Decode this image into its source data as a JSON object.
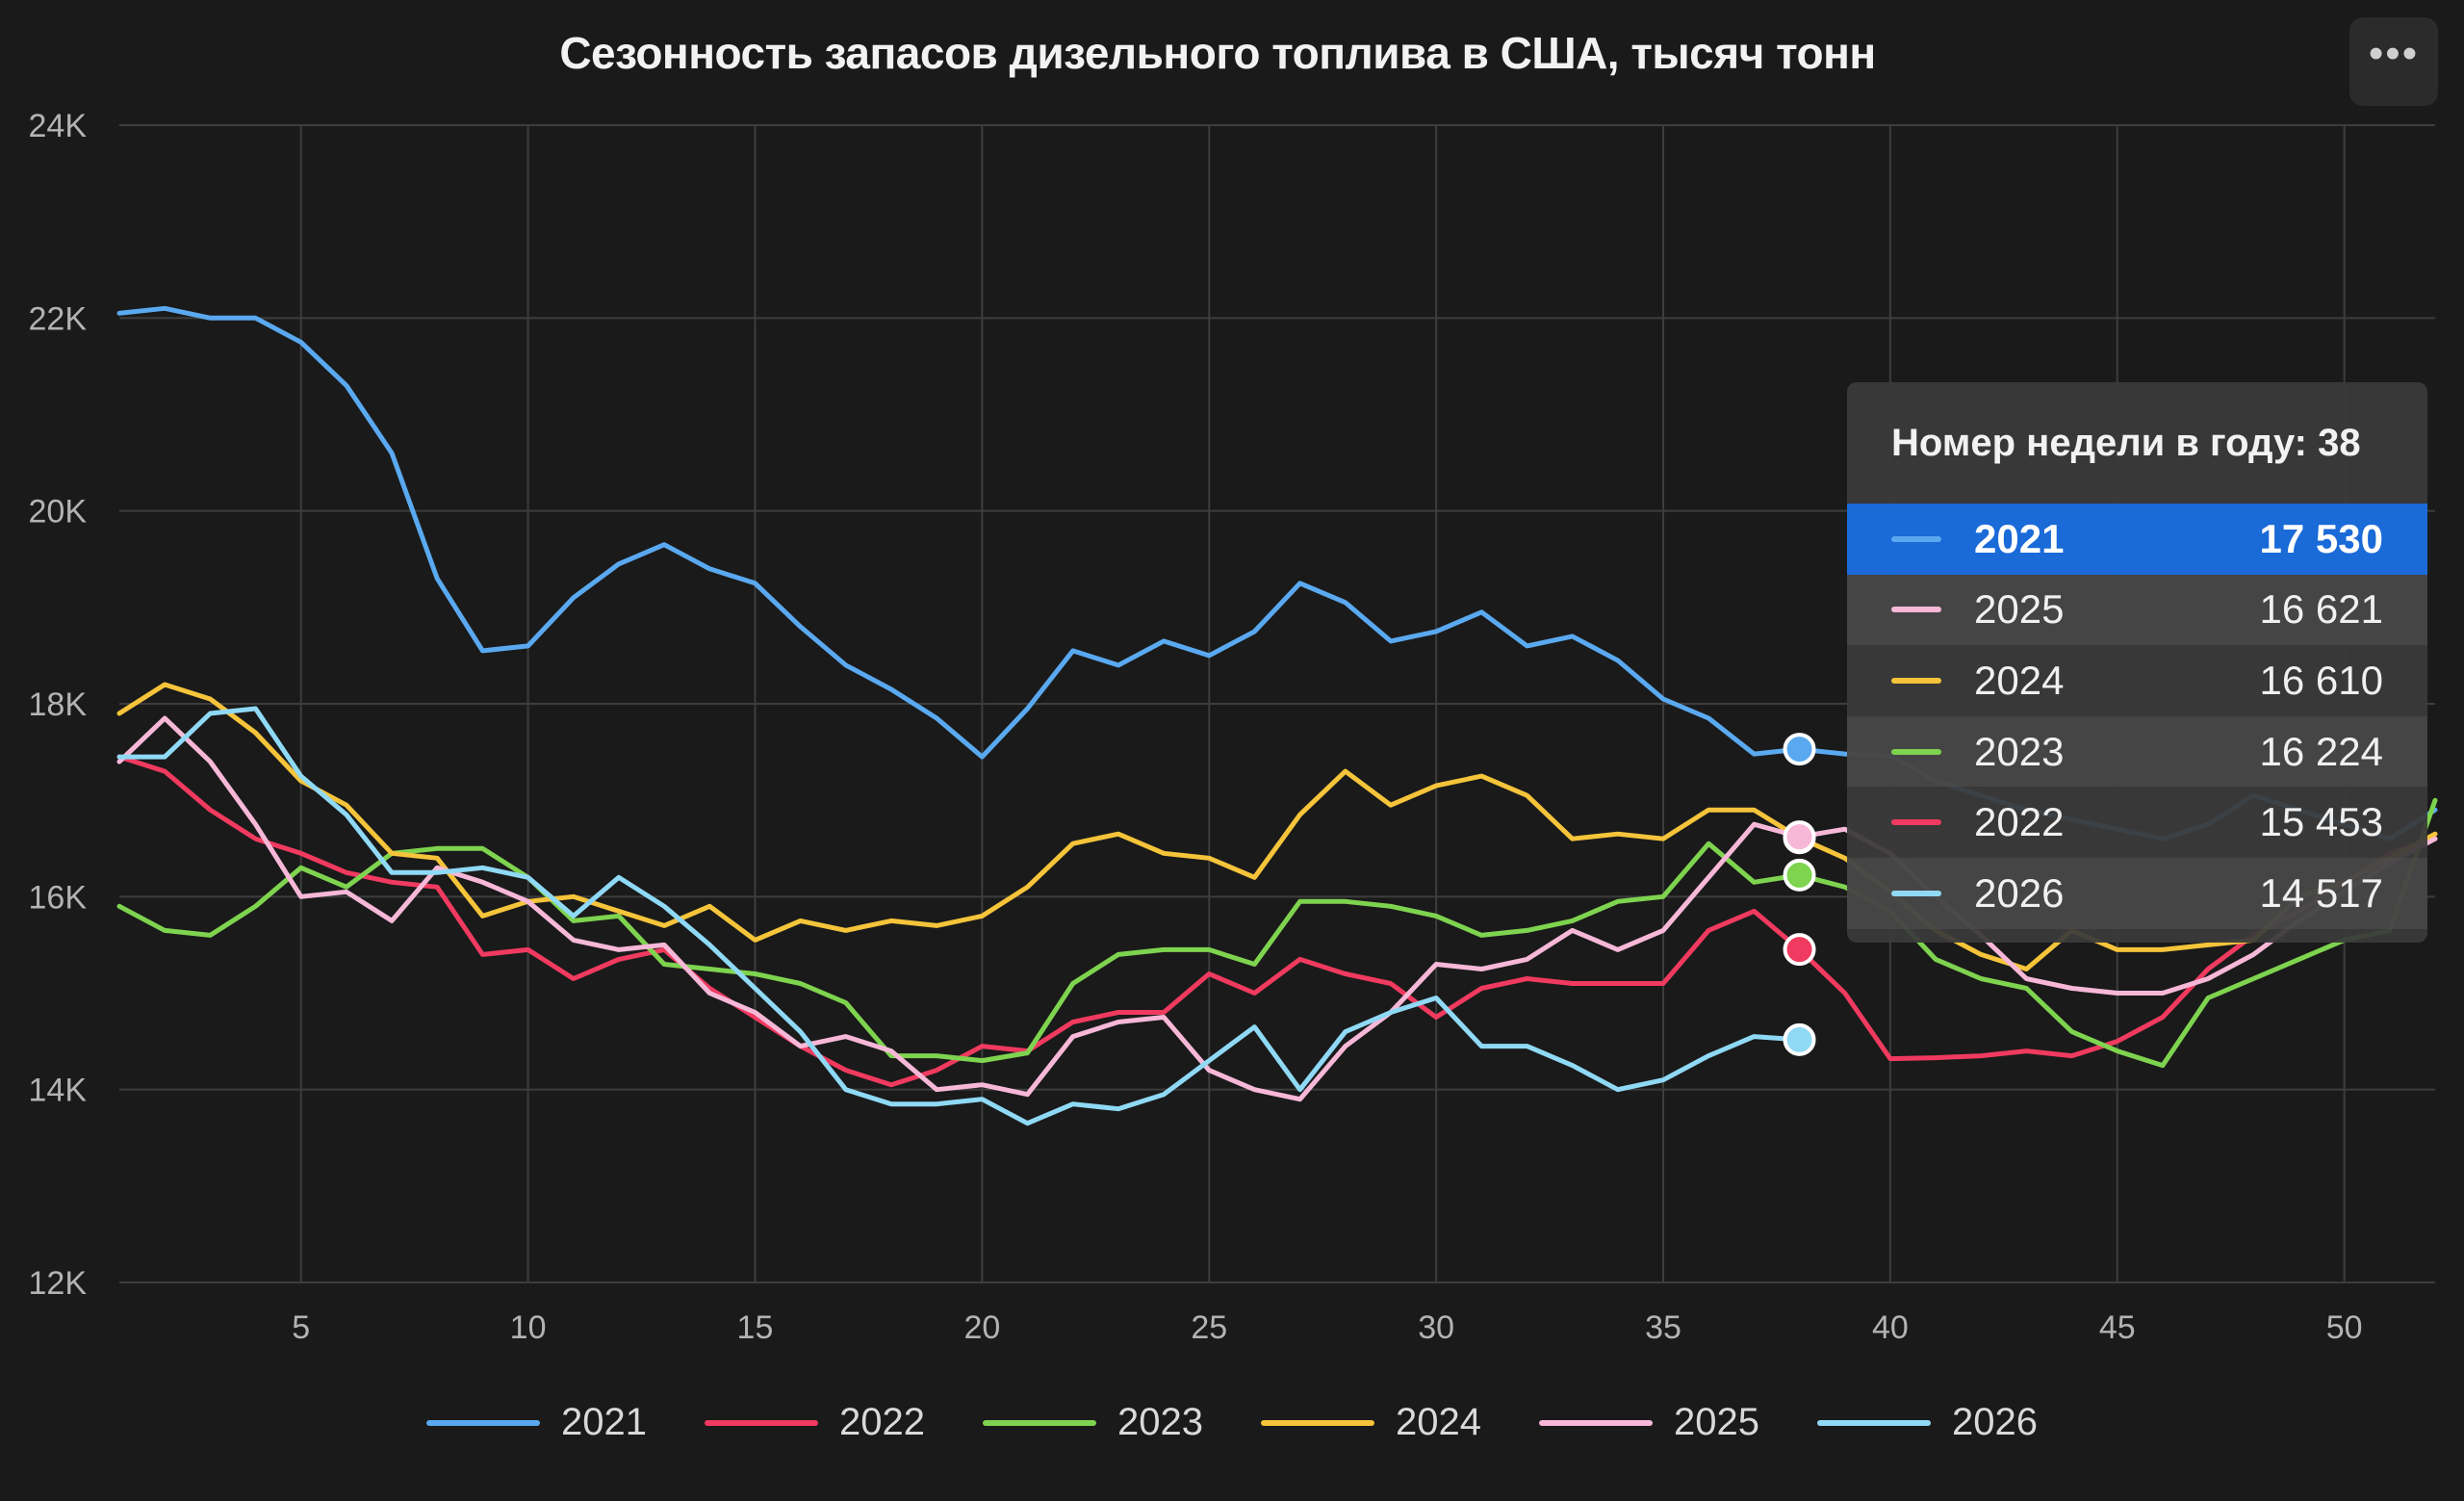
{
  "header": {
    "title": "Сезонность запасов дизельного топлива в США, тысяч тонн",
    "menu_icon": "more-horizontal-icon",
    "menu_glyph": "•••"
  },
  "chart_data": {
    "type": "line",
    "title": "Сезонность запасов дизельного топлива в США, тысяч тонн",
    "xlabel": "",
    "ylabel": "",
    "xlim": [
      1,
      52
    ],
    "ylim": [
      12000,
      24000
    ],
    "grid": true,
    "legend_position": "bottom",
    "x_ticks": [
      5,
      10,
      15,
      20,
      25,
      30,
      35,
      40,
      45,
      50
    ],
    "y_ticks": [
      12000,
      14000,
      16000,
      18000,
      20000,
      22000,
      24000
    ],
    "y_tick_labels": [
      "12K",
      "14K",
      "16K",
      "18K",
      "20K",
      "22K",
      "24K"
    ],
    "series": [
      {
        "name": "2021",
        "color": "#5aa9f0",
        "start_week": 1,
        "values": [
          22050,
          22100,
          22000,
          22000,
          21750,
          21300,
          20600,
          19300,
          18550,
          18600,
          19100,
          19450,
          19650,
          19400,
          19250,
          18800,
          18400,
          18150,
          17850,
          17450,
          17950,
          18550,
          18400,
          18650,
          18500,
          18750,
          19250,
          19050,
          18650,
          18750,
          18950,
          18600,
          18700,
          18450,
          18050,
          17850,
          17480,
          17530,
          17480,
          17460,
          17200,
          17050,
          16900,
          16800,
          16700,
          16600,
          16750,
          17050,
          16900,
          16750,
          16600,
          16900
        ]
      },
      {
        "name": "2022",
        "color": "#f03a5f",
        "start_week": 1,
        "values": [
          17450,
          17300,
          16900,
          16600,
          16450,
          16250,
          16150,
          16100,
          15400,
          15450,
          15150,
          15350,
          15450,
          15050,
          14750,
          14450,
          14200,
          14050,
          14200,
          14450,
          14400,
          14700,
          14800,
          14800,
          15200,
          15000,
          15350,
          15200,
          15100,
          14750,
          15050,
          15150,
          15100,
          15100,
          15100,
          15650,
          15850,
          15453,
          15000,
          14320,
          14330,
          14350,
          14400,
          14350,
          14500,
          14750,
          15250,
          15600,
          15850,
          16150,
          16450,
          16600
        ]
      },
      {
        "name": "2023",
        "color": "#7ed34f",
        "start_week": 1,
        "values": [
          15900,
          15650,
          15600,
          15900,
          16300,
          16100,
          16450,
          16500,
          16500,
          16200,
          15750,
          15800,
          15300,
          15250,
          15200,
          15100,
          14900,
          14350,
          14350,
          14300,
          14380,
          15100,
          15400,
          15450,
          15450,
          15300,
          15950,
          15950,
          15900,
          15800,
          15600,
          15650,
          15750,
          15950,
          16000,
          16550,
          16150,
          16224,
          16100,
          15850,
          15350,
          15150,
          15050,
          14600,
          14400,
          14250,
          14950,
          15150,
          15350,
          15550,
          15650,
          17000
        ]
      },
      {
        "name": "2024",
        "color": "#f5c43a",
        "start_week": 1,
        "values": [
          17900,
          18200,
          18050,
          17700,
          17200,
          16950,
          16450,
          16400,
          15800,
          15950,
          16000,
          15850,
          15700,
          15900,
          15550,
          15750,
          15650,
          15750,
          15700,
          15800,
          16100,
          16550,
          16650,
          16450,
          16400,
          16200,
          16850,
          17300,
          16950,
          17150,
          17250,
          17050,
          16600,
          16650,
          16600,
          16900,
          16900,
          16610,
          16400,
          16050,
          15650,
          15400,
          15250,
          15650,
          15450,
          15450,
          15500,
          15550,
          16000,
          16150,
          16400,
          16650
        ]
      },
      {
        "name": "2025",
        "color": "#f7b8d8",
        "start_week": 1,
        "values": [
          17400,
          17850,
          17400,
          16750,
          16000,
          16050,
          15750,
          16300,
          16150,
          15950,
          15550,
          15450,
          15500,
          15000,
          14800,
          14450,
          14550,
          14400,
          14000,
          14050,
          13950,
          14550,
          14700,
          14750,
          14200,
          14000,
          13900,
          14450,
          14800,
          15300,
          15250,
          15350,
          15650,
          15450,
          15650,
          16200,
          16750,
          16621,
          16700,
          16450,
          16000,
          15600,
          15150,
          15050,
          15000,
          15000,
          15150,
          15400,
          15750,
          16050,
          16350,
          16600
        ]
      },
      {
        "name": "2026",
        "color": "#8fd9f5",
        "start_week": 1,
        "values": [
          17450,
          17450,
          17900,
          17950,
          17250,
          16850,
          16250,
          16250,
          16300,
          16200,
          15800,
          16200,
          15900,
          15500,
          15050,
          14600,
          14000,
          13850,
          13850,
          13900,
          13650,
          13850,
          13800,
          13950,
          14300,
          14650,
          14000,
          14600,
          14800,
          14950,
          14450,
          14450,
          14250,
          14000,
          14100,
          14350,
          14550,
          14517
        ]
      }
    ]
  },
  "legend": {
    "items": [
      {
        "label": "2021",
        "color": "#5aa9f0"
      },
      {
        "label": "2022",
        "color": "#f03a5f"
      },
      {
        "label": "2023",
        "color": "#7ed34f"
      },
      {
        "label": "2024",
        "color": "#f5c43a"
      },
      {
        "label": "2025",
        "color": "#f7b8d8"
      },
      {
        "label": "2026",
        "color": "#8fd9f5"
      }
    ]
  },
  "tooltip": {
    "header": "Номер недели в году: 38",
    "week": 38,
    "rows": [
      {
        "name": "2021",
        "value": "17 530",
        "color": "#5aa9f0",
        "active": true
      },
      {
        "name": "2025",
        "value": "16 621",
        "color": "#f7b8d8",
        "active": false
      },
      {
        "name": "2024",
        "value": "16 610",
        "color": "#f5c43a",
        "active": false
      },
      {
        "name": "2023",
        "value": "16 224",
        "color": "#7ed34f",
        "active": false
      },
      {
        "name": "2022",
        "value": "15 453",
        "color": "#f03a5f",
        "active": false
      },
      {
        "name": "2026",
        "value": "14 517",
        "color": "#8fd9f5",
        "active": false
      }
    ]
  }
}
